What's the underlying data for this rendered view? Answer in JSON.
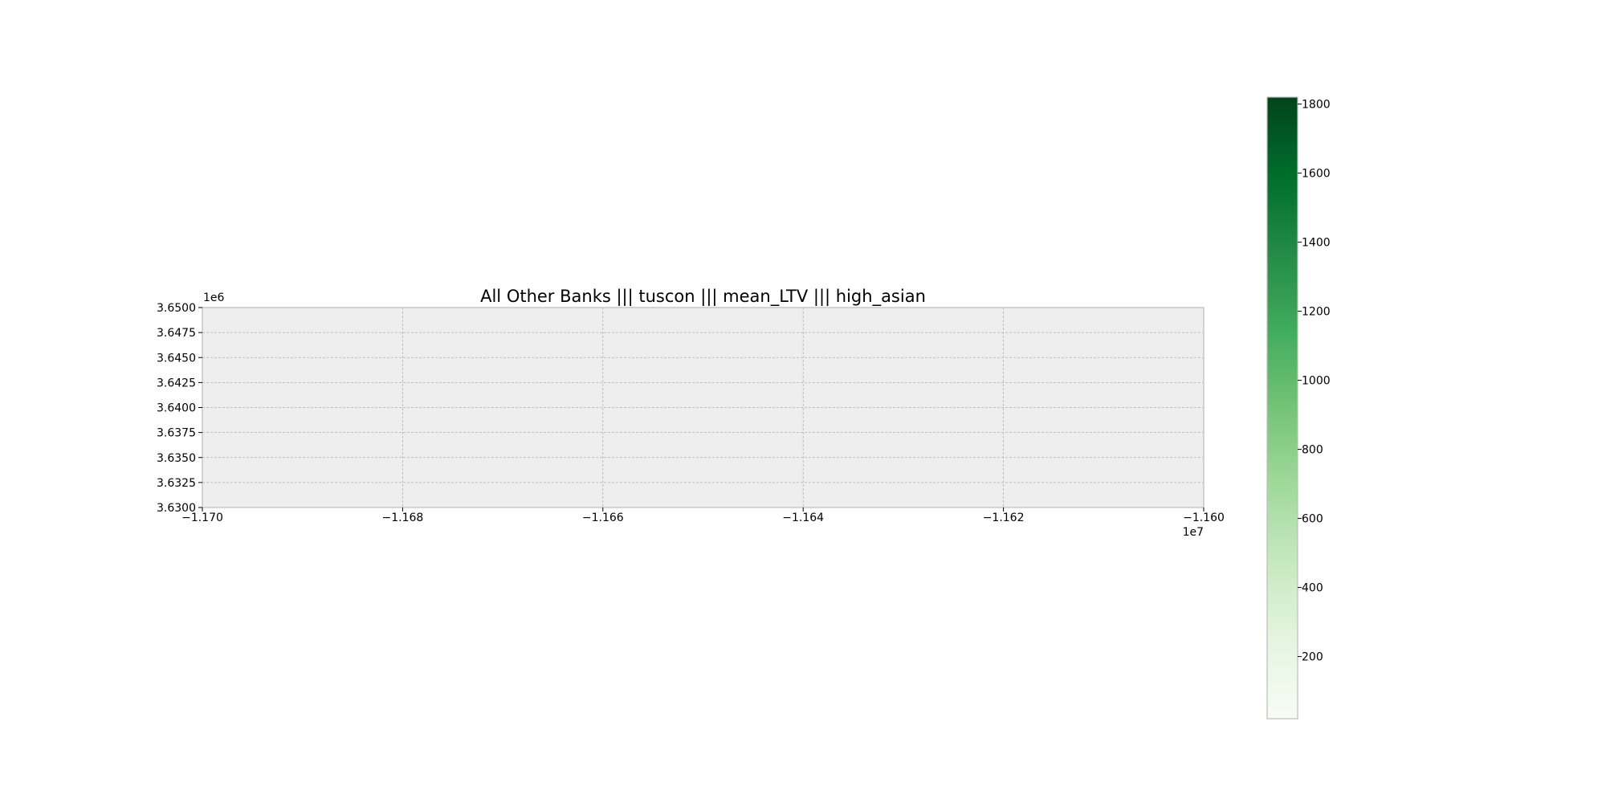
{
  "chart_data": {
    "type": "heatmap",
    "title": "All Other Banks ||| tuscon ||| mean_LTV ||| high_asian",
    "xlabel": "",
    "ylabel": "",
    "xlim": [
      -11700000,
      -11600000
    ],
    "ylim": [
      3630000,
      3650000
    ],
    "x_offset_label": "1e7",
    "y_offset_label": "1e6",
    "x_ticks": [
      {
        "value": -11700000,
        "label": "−1.170"
      },
      {
        "value": -11680000,
        "label": "−1.168"
      },
      {
        "value": -11660000,
        "label": "−1.166"
      },
      {
        "value": -11640000,
        "label": "−1.164"
      },
      {
        "value": -11620000,
        "label": "−1.162"
      },
      {
        "value": -11600000,
        "label": "−1.160"
      }
    ],
    "y_ticks": [
      {
        "value": 3630000,
        "label": "3.6300"
      },
      {
        "value": 3632500,
        "label": "3.6325"
      },
      {
        "value": 3635000,
        "label": "3.6350"
      },
      {
        "value": 3637500,
        "label": "3.6375"
      },
      {
        "value": 3640000,
        "label": "3.6400"
      },
      {
        "value": 3642500,
        "label": "3.6425"
      },
      {
        "value": 3645000,
        "label": "3.6450"
      },
      {
        "value": 3647500,
        "label": "3.6475"
      },
      {
        "value": 3650000,
        "label": "3.6500"
      }
    ],
    "grid": true,
    "data_points": [],
    "colorbar": {
      "colormap": "Greens",
      "range": [
        20,
        1820
      ],
      "ticks": [
        200,
        400,
        600,
        800,
        1000,
        1200,
        1400,
        1600,
        1800
      ],
      "position": "right",
      "colors": [
        "#f7fcf5",
        "#e5f5e0",
        "#c7e9c0",
        "#a1d99b",
        "#74c476",
        "#41ab5d",
        "#238b45",
        "#006d2c",
        "#00441b"
      ]
    },
    "colors": {
      "axes_background": "#eeeeee",
      "grid": "#b0b0b0",
      "spine": "#bcbcbc"
    }
  }
}
